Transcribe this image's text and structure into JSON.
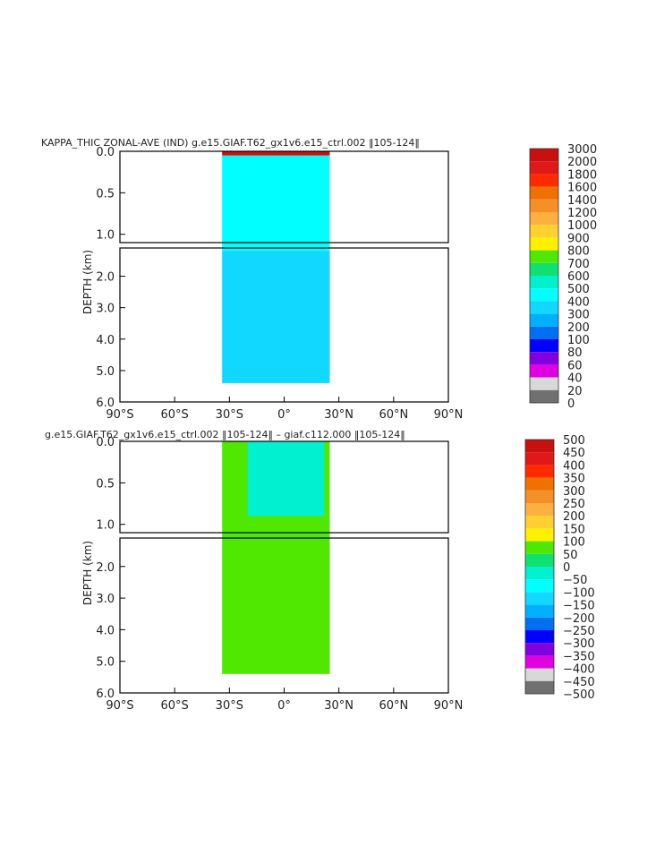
{
  "chart_data": [
    {
      "type": "heatmap",
      "title": "KAPPA_THIC ZONAL-AVE (IND) g.e15.GIAF.T62_gx1v6.e15_ctrl.002 ‖105-124‖",
      "ylabel": "DEPTH (km)",
      "xlabel": "",
      "x_ticks": [
        "90°S",
        "60°S",
        "30°S",
        "0°",
        "30°N",
        "60°N",
        "90°N"
      ],
      "y_ticks_upper": [
        "0.0",
        "0.5",
        "1.0"
      ],
      "y_ticks_lower": [
        "2.0",
        "3.0",
        "4.0",
        "5.0",
        "6.0"
      ],
      "xlim": [
        -90,
        90
      ],
      "ylim": [
        6.0,
        0.0
      ],
      "colorbar_levels": [
        "3000",
        "2000",
        "1800",
        "1600",
        "1400",
        "1200",
        "1000",
        "900",
        "800",
        "700",
        "600",
        "500",
        "400",
        "300",
        "200",
        "100",
        "80",
        "60",
        "40",
        "20",
        "0"
      ],
      "colorbar_colors": [
        "#c81010",
        "#e01818",
        "#ff2a00",
        "#f07000",
        "#f59028",
        "#fbb040",
        "#ffd030",
        "#fff000",
        "#50e800",
        "#10e070",
        "#00f0d0",
        "#00ffff",
        "#10d8ff",
        "#00b0ff",
        "#0070f0",
        "#0000ff",
        "#8000e0",
        "#e000e0",
        "#d8d8d8",
        "#707070"
      ],
      "regions": [
        {
          "level": "300",
          "lat_min": -34,
          "lat_max": 25,
          "depth_top": 1.2,
          "depth_bottom": 5.4
        },
        {
          "level": "400",
          "lat_min": -34,
          "lat_max": 25,
          "depth_top": 0.05,
          "depth_bottom": 1.2
        },
        {
          "level": "3000",
          "lat_min": -34,
          "lat_max": 25,
          "depth_top": 0.0,
          "depth_bottom": 0.05
        }
      ]
    },
    {
      "type": "heatmap",
      "title": "g.e15.GIAF.T62_gx1v6.e15_ctrl.002 ‖105-124‖ – giaf.c112.000 ‖105-124‖",
      "ylabel": "DEPTH (km)",
      "xlabel": "",
      "x_ticks": [
        "90°S",
        "60°S",
        "30°S",
        "0°",
        "30°N",
        "60°N",
        "90°N"
      ],
      "y_ticks_upper": [
        "0.0",
        "0.5",
        "1.0"
      ],
      "y_ticks_lower": [
        "2.0",
        "3.0",
        "4.0",
        "5.0",
        "6.0"
      ],
      "xlim": [
        -90,
        90
      ],
      "ylim": [
        6.0,
        0.0
      ],
      "colorbar_levels": [
        "500",
        "450",
        "400",
        "350",
        "300",
        "250",
        "200",
        "150",
        "100",
        "50",
        "0",
        "−50",
        "−100",
        "−150",
        "−200",
        "−250",
        "−300",
        "−350",
        "−400",
        "−450",
        "−500"
      ],
      "colorbar_colors": [
        "#c81010",
        "#e01818",
        "#ff2a00",
        "#f07000",
        "#f59028",
        "#fbb040",
        "#ffd030",
        "#fff000",
        "#50e800",
        "#10e070",
        "#00f0d0",
        "#00ffff",
        "#10d8ff",
        "#00b0ff",
        "#0070f0",
        "#0000ff",
        "#8000e0",
        "#e000e0",
        "#d8d8d8",
        "#707070"
      ],
      "regions": [
        {
          "level": "50",
          "lat_min": -34,
          "lat_max": 25,
          "depth_top": 0.0,
          "depth_bottom": 5.4
        },
        {
          "level": "−50",
          "lat_min": -20,
          "lat_max": 22,
          "depth_top": 0.0,
          "depth_bottom": 0.9
        }
      ]
    }
  ]
}
